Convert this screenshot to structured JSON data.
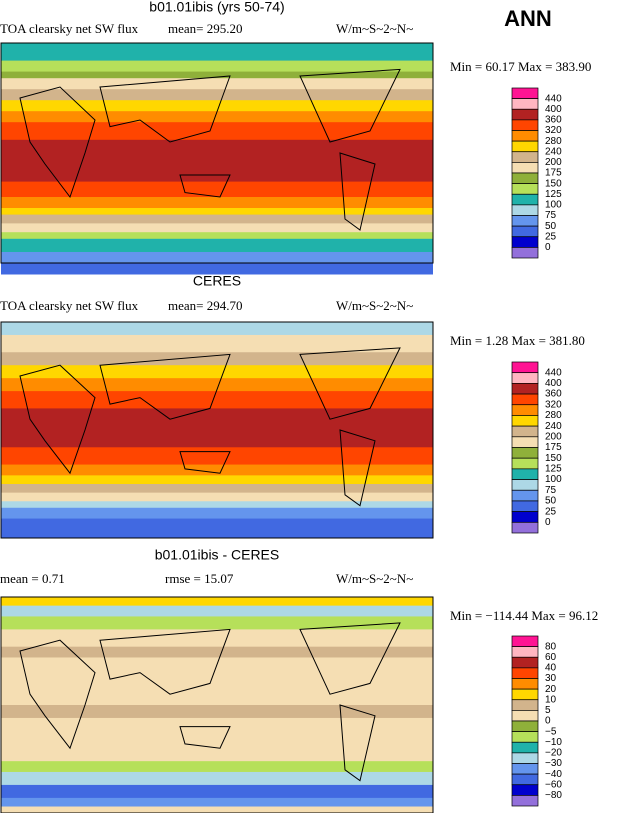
{
  "header": "ANN",
  "panels": [
    {
      "title": "b01.01ibis (yrs 50-74)",
      "label": "TOA clearsky net SW flux",
      "mean": "mean= 295.20",
      "units": "W/m~S~2~N~",
      "minmax": "Min =  60.17 Max = 383.90",
      "colorbar": {
        "labels": [
          "440",
          "400",
          "360",
          "320",
          "280",
          "240",
          "200",
          "175",
          "150",
          "125",
          "100",
          "75",
          "50",
          "25",
          "0"
        ],
        "colors": [
          "#ff1493",
          "#ffb6c1",
          "#b22222",
          "#ff4500",
          "#ff8c00",
          "#ffd700",
          "#d2b48c",
          "#f5deb3",
          "#8fb03a",
          "#b6e05a",
          "#20b2aa",
          "#add8e6",
          "#6495ed",
          "#4169e1",
          "#0000cd",
          "#9370db"
        ]
      }
    },
    {
      "title": "CERES",
      "label": "TOA clearsky net SW flux",
      "mean": "mean= 294.70",
      "units": "W/m~S~2~N~",
      "minmax": "Min =    1.28 Max = 381.80",
      "colorbar": {
        "labels": [
          "440",
          "400",
          "360",
          "320",
          "280",
          "240",
          "200",
          "175",
          "150",
          "125",
          "100",
          "75",
          "50",
          "25",
          "0"
        ],
        "colors": [
          "#ff1493",
          "#ffb6c1",
          "#b22222",
          "#ff4500",
          "#ff8c00",
          "#ffd700",
          "#d2b48c",
          "#f5deb3",
          "#8fb03a",
          "#b6e05a",
          "#20b2aa",
          "#add8e6",
          "#6495ed",
          "#4169e1",
          "#0000cd",
          "#9370db"
        ]
      }
    },
    {
      "title": "b01.01ibis - CERES",
      "mean": "mean =   0.71",
      "rmse": "rmse =  15.07",
      "units": "W/m~S~2~N~",
      "minmax": "Min = −114.44 Max =  96.12",
      "colorbar": {
        "labels": [
          "80",
          "60",
          "40",
          "30",
          "20",
          "10",
          "5",
          "0",
          "−5",
          "−10",
          "−20",
          "−30",
          "−40",
          "−60",
          "−80"
        ],
        "colors": [
          "#ff1493",
          "#ffb6c1",
          "#b22222",
          "#ff4500",
          "#ff8c00",
          "#ffd700",
          "#d2b48c",
          "#f5deb3",
          "#8fb03a",
          "#b6e05a",
          "#20b2aa",
          "#add8e6",
          "#6495ed",
          "#4169e1",
          "#0000cd",
          "#9370db"
        ]
      }
    }
  ]
}
